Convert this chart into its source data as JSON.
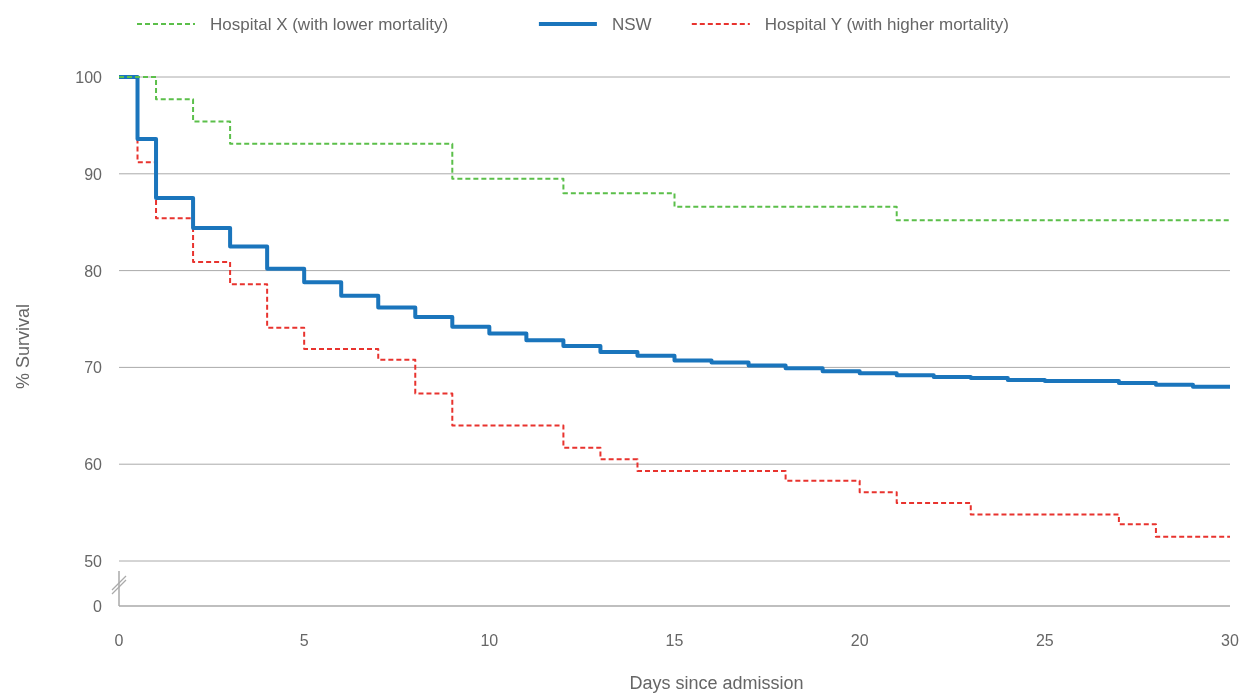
{
  "chart_data": {
    "type": "step",
    "xlabel": "Days since admission",
    "ylabel": "% Survival",
    "xlim": [
      0,
      30
    ],
    "xticks": [
      0,
      5,
      10,
      15,
      20,
      25,
      30
    ],
    "ylim": [
      50,
      100
    ],
    "yticks": [
      50,
      60,
      70,
      80,
      90,
      100
    ],
    "annotations": [
      "0"
    ],
    "grid": "y",
    "legend": "top",
    "series": [
      {
        "name": "Hospital X (with lower mortality)",
        "color": "#5bbf4a",
        "line_style": "dashed",
        "x": [
          0,
          1,
          2,
          3,
          9,
          12,
          15,
          21,
          30
        ],
        "values": [
          100,
          97.7,
          95.4,
          93.1,
          89.5,
          88.0,
          86.6,
          85.2,
          85.2
        ]
      },
      {
        "name": "NSW",
        "color": "#1a75bc",
        "line_style": "solid",
        "x": [
          0,
          0.5,
          1,
          2,
          3,
          4,
          5,
          6,
          7,
          8,
          9,
          10,
          11,
          12,
          13,
          14,
          15,
          16,
          17,
          18,
          19,
          20,
          21,
          22,
          23,
          24,
          25,
          27,
          28,
          29,
          30
        ],
        "values": [
          100,
          93.6,
          87.5,
          84.4,
          82.5,
          80.2,
          78.8,
          77.4,
          76.2,
          75.2,
          74.2,
          73.5,
          72.8,
          72.2,
          71.6,
          71.2,
          70.7,
          70.5,
          70.2,
          69.9,
          69.6,
          69.4,
          69.2,
          69.0,
          68.9,
          68.7,
          68.6,
          68.4,
          68.2,
          68.0,
          68.0
        ]
      },
      {
        "name": "Hospital Y (with higher mortality)",
        "color": "#e8332e",
        "line_style": "dashed",
        "x": [
          0,
          0.5,
          1,
          2,
          3,
          4,
          5,
          7,
          8,
          9,
          12,
          13,
          14,
          18,
          20,
          21,
          23,
          27,
          28,
          30
        ],
        "values": [
          100,
          91.2,
          85.4,
          80.9,
          78.6,
          74.1,
          71.9,
          70.8,
          67.3,
          64.0,
          61.7,
          60.5,
          59.3,
          58.3,
          57.1,
          56.0,
          54.8,
          53.8,
          52.5,
          52.5
        ]
      }
    ]
  }
}
